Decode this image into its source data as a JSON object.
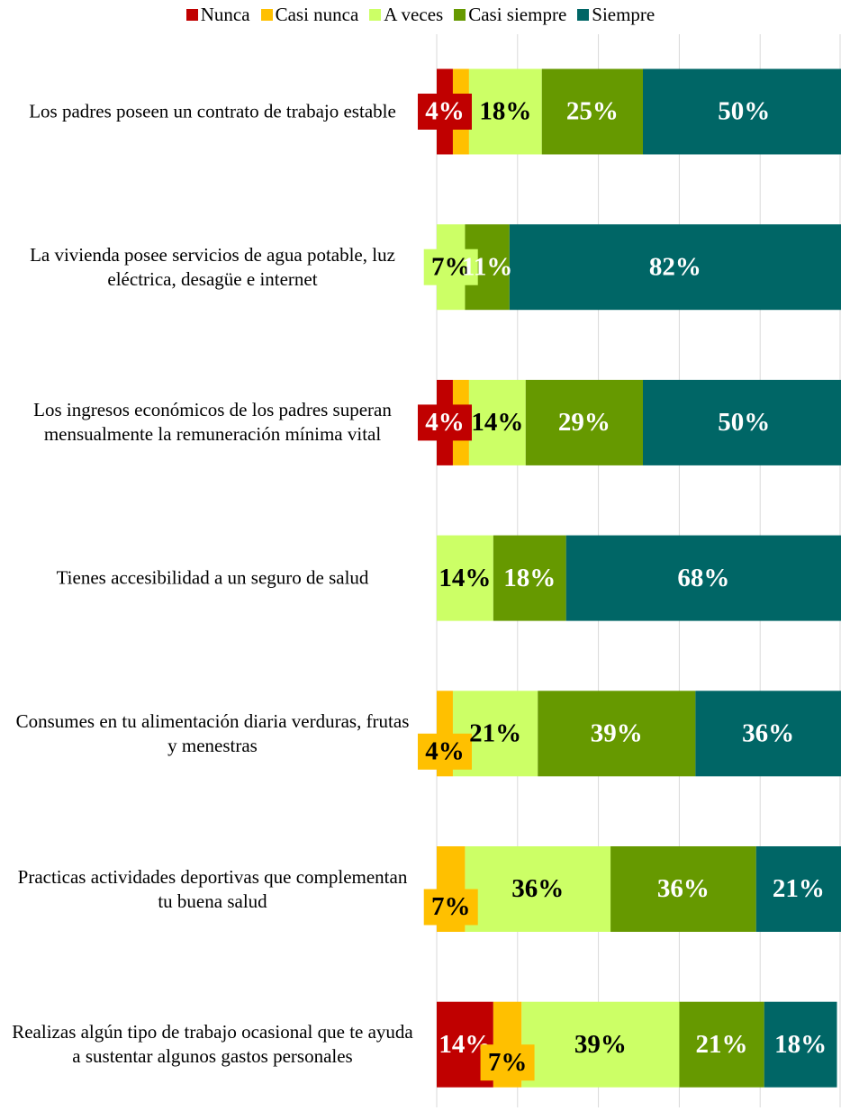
{
  "chart_data": {
    "type": "stacked_bar_horizontal",
    "categories": [
      "Los padres poseen un contrato de trabajo estable",
      "La vivienda posee servicios de agua potable, luz eléctrica, desagüe e internet",
      "Los ingresos económicos de los padres superan mensualmente la remuneración mínima vital",
      "Tienes accesibilidad a un seguro de salud",
      "Consumes en tu alimentación diaria verduras, frutas y menestras",
      "Practicas actividades deportivas que complementan tu buena salud",
      "Realizas algún tipo de trabajo ocasional que te ayuda a sustentar algunos gastos personales"
    ],
    "series": [
      {
        "name": "Nunca",
        "color": "#c00000",
        "label_color": "#ffffff",
        "values": [
          4,
          0,
          4,
          0,
          0,
          0,
          14
        ],
        "value_labels": [
          "4%",
          null,
          "4%",
          null,
          null,
          null,
          "14%"
        ]
      },
      {
        "name": "Casi nunca",
        "color": "#ffc000",
        "label_color": "#000000",
        "values": [
          4,
          0,
          4,
          0,
          4,
          7,
          7
        ],
        "value_labels": [
          null,
          null,
          null,
          null,
          "4%",
          "7%",
          "7%"
        ]
      },
      {
        "name": "A veces",
        "color": "#ccff66",
        "label_color": "#000000",
        "values": [
          18,
          7,
          14,
          14,
          21,
          36,
          39
        ],
        "value_labels": [
          "18%",
          "7%",
          "14%",
          "14%",
          "21%",
          "36%",
          "39%"
        ]
      },
      {
        "name": "Casi siempre",
        "color": "#669900",
        "label_color": "#ffffff",
        "values": [
          25,
          11,
          29,
          18,
          39,
          36,
          21
        ],
        "value_labels": [
          "25%",
          "11%",
          "29%",
          "18%",
          "39%",
          "36%",
          "21%"
        ]
      },
      {
        "name": "Siempre",
        "color": "#006666",
        "label_color": "#ffffff",
        "values": [
          50,
          82,
          50,
          68,
          36,
          21,
          18
        ],
        "value_labels": [
          "50%",
          "82%",
          "50%",
          "68%",
          "36%",
          "21%",
          "18%"
        ]
      }
    ],
    "xlim": [
      0,
      100
    ],
    "xticks": [
      0,
      20,
      40,
      60,
      80,
      100
    ],
    "grid": true,
    "legend": "top"
  }
}
